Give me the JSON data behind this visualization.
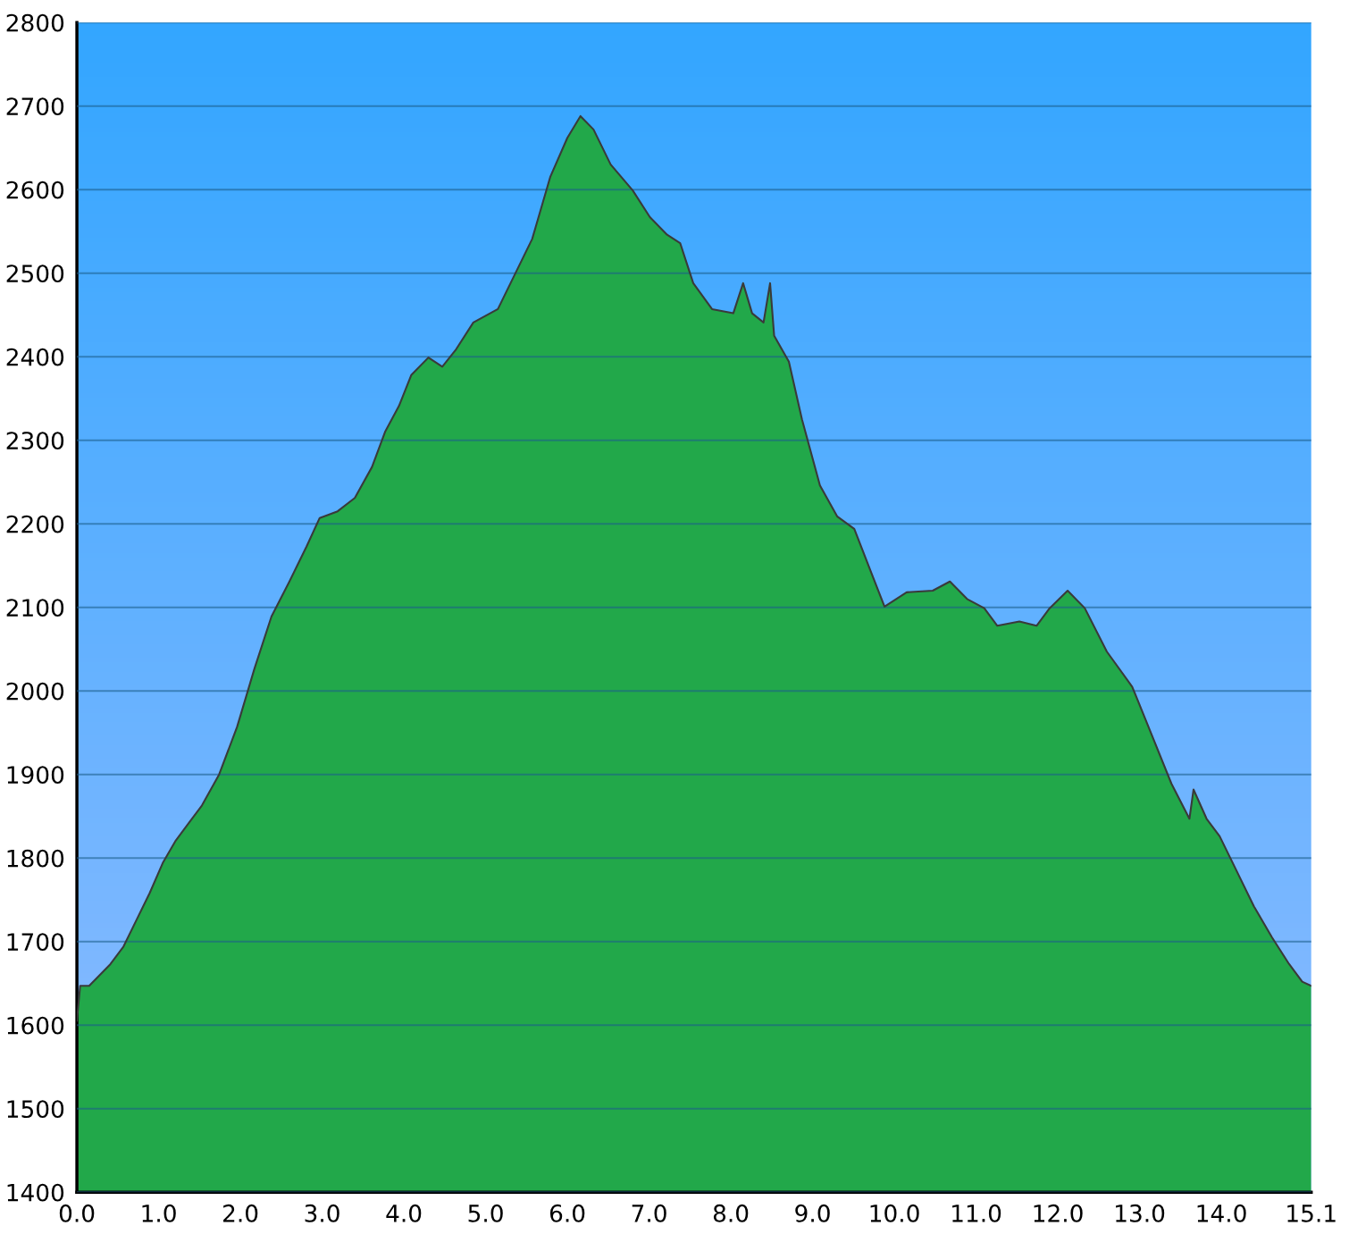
{
  "chart_data": {
    "type": "area",
    "xlim": [
      0,
      15.1
    ],
    "ylim": [
      1400,
      2800
    ],
    "xticks": [
      {
        "value": 0,
        "label": "0.0"
      },
      {
        "value": 1,
        "label": "1.0"
      },
      {
        "value": 2,
        "label": "2.0"
      },
      {
        "value": 3,
        "label": "3.0"
      },
      {
        "value": 4,
        "label": "4.0"
      },
      {
        "value": 5,
        "label": "5.0"
      },
      {
        "value": 6,
        "label": "6.0"
      },
      {
        "value": 7,
        "label": "7.0"
      },
      {
        "value": 8,
        "label": "8.0"
      },
      {
        "value": 9,
        "label": "9.0"
      },
      {
        "value": 10,
        "label": "10.0"
      },
      {
        "value": 11,
        "label": "11.0"
      },
      {
        "value": 12,
        "label": "12.0"
      },
      {
        "value": 13,
        "label": "13.0"
      },
      {
        "value": 14,
        "label": "14.0"
      },
      {
        "value": 15.1,
        "label": "15.1"
      }
    ],
    "yticks": [
      1400,
      1500,
      1600,
      1700,
      1800,
      1900,
      2000,
      2100,
      2200,
      2300,
      2400,
      2500,
      2600,
      2700,
      2800
    ],
    "grid": "y",
    "legend": false,
    "x": [
      0,
      0.04,
      0.15,
      0.26,
      0.41,
      0.57,
      0.73,
      0.89,
      1.05,
      1.21,
      1.37,
      1.53,
      1.74,
      1.96,
      2.17,
      2.38,
      2.6,
      2.81,
      2.97,
      3.19,
      3.4,
      3.61,
      3.77,
      3.94,
      4.09,
      4.3,
      4.47,
      4.64,
      4.85,
      5.15,
      5.36,
      5.57,
      5.79,
      6.0,
      6.16,
      6.32,
      6.53,
      6.8,
      7.01,
      7.22,
      7.38,
      7.54,
      7.77,
      8.03,
      8.15,
      8.26,
      8.4,
      8.48,
      8.53,
      8.71,
      8.87,
      9.09,
      9.3,
      9.51,
      9.72,
      9.88,
      10.15,
      10.47,
      10.68,
      10.89,
      11.1,
      11.26,
      11.53,
      11.74,
      11.9,
      12.12,
      12.33,
      12.6,
      12.91,
      13.13,
      13.39,
      13.61,
      13.66,
      13.82,
      13.98,
      14.19,
      14.4,
      14.62,
      14.83,
      14.99,
      15.1
    ],
    "series": [
      {
        "color": "#22a84a",
        "values": [
          1605,
          1647,
          1647,
          1658,
          1673,
          1694,
          1726,
          1758,
          1794,
          1821,
          1842,
          1863,
          1900,
          1957,
          2026,
          2089,
          2131,
          2173,
          2207,
          2215,
          2231,
          2268,
          2310,
          2341,
          2378,
          2399,
          2388,
          2409,
          2441,
          2457,
          2499,
          2541,
          2615,
          2662,
          2688,
          2672,
          2630,
          2599,
          2567,
          2546,
          2536,
          2488,
          2457,
          2452,
          2488,
          2452,
          2441,
          2488,
          2425,
          2394,
          2325,
          2246,
          2209,
          2194,
          2141,
          2101,
          2118,
          2120,
          2131,
          2110,
          2099,
          2078,
          2083,
          2078,
          2099,
          2120,
          2099,
          2047,
          2005,
          1952,
          1889,
          1847,
          1882,
          1847,
          1826,
          1784,
          1742,
          1705,
          1673,
          1652,
          1647
        ]
      }
    ]
  }
}
